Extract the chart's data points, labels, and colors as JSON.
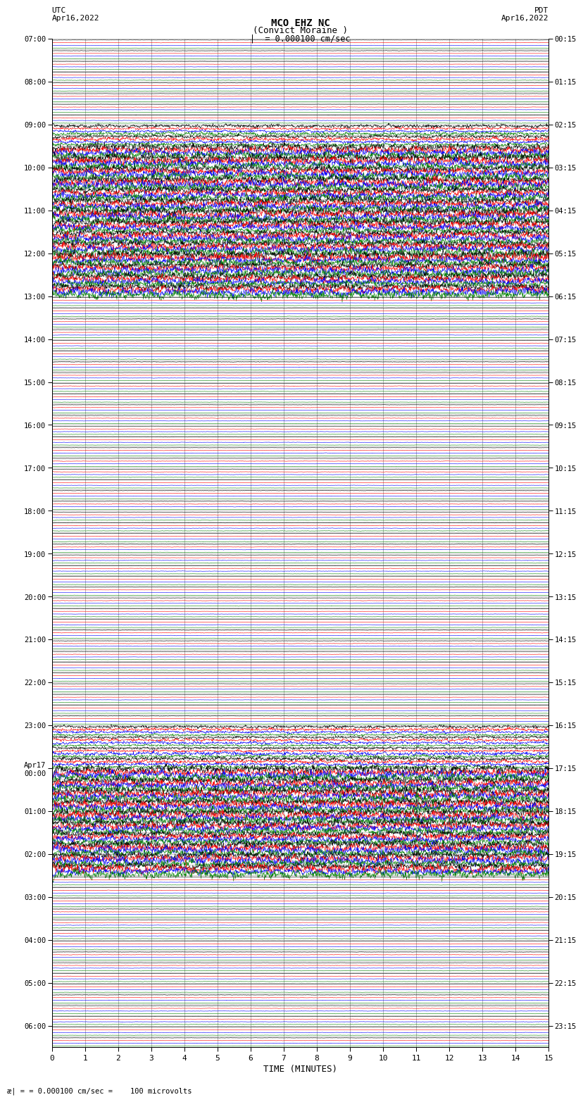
{
  "title_line1": "MCO EHZ NC",
  "title_line2": "(Convict Moraine )",
  "scale_label": "= 0.000100 cm/sec",
  "footer_label": "= 0.000100 cm/sec =    100 microvolts",
  "utc_label": "UTC\nApr16,2022",
  "pdt_label": "PDT\nApr16,2022",
  "xlabel": "TIME (MINUTES)",
  "left_times_utc": [
    "07:00",
    "",
    "",
    "",
    "08:00",
    "",
    "",
    "",
    "09:00",
    "",
    "",
    "",
    "10:00",
    "",
    "",
    "",
    "11:00",
    "",
    "",
    "",
    "12:00",
    "",
    "",
    "",
    "13:00",
    "",
    "",
    "",
    "14:00",
    "",
    "",
    "",
    "15:00",
    "",
    "",
    "",
    "16:00",
    "",
    "",
    "",
    "17:00",
    "",
    "",
    "",
    "18:00",
    "",
    "",
    "",
    "19:00",
    "",
    "",
    "",
    "20:00",
    "",
    "",
    "",
    "21:00",
    "",
    "",
    "",
    "22:00",
    "",
    "",
    "",
    "23:00",
    "",
    "",
    "",
    "Apr17\n00:00",
    "",
    "",
    "",
    "01:00",
    "",
    "",
    "",
    "02:00",
    "",
    "",
    "",
    "03:00",
    "",
    "",
    "",
    "04:00",
    "",
    "",
    "",
    "05:00",
    "",
    "",
    "",
    "06:00",
    ""
  ],
  "right_times_pdt": [
    "00:15",
    "",
    "",
    "",
    "01:15",
    "",
    "",
    "",
    "02:15",
    "",
    "",
    "",
    "03:15",
    "",
    "",
    "",
    "04:15",
    "",
    "",
    "",
    "05:15",
    "",
    "",
    "",
    "06:15",
    "",
    "",
    "",
    "07:15",
    "",
    "",
    "",
    "08:15",
    "",
    "",
    "",
    "09:15",
    "",
    "",
    "",
    "10:15",
    "",
    "",
    "",
    "11:15",
    "",
    "",
    "",
    "12:15",
    "",
    "",
    "",
    "13:15",
    "",
    "",
    "",
    "14:15",
    "",
    "",
    "",
    "15:15",
    "",
    "",
    "",
    "16:15",
    "",
    "",
    "",
    "17:15",
    "",
    "",
    "",
    "18:15",
    "",
    "",
    "",
    "19:15",
    "",
    "",
    "",
    "20:15",
    "",
    "",
    "",
    "21:15",
    "",
    "",
    "",
    "22:15",
    "",
    "",
    "",
    "23:15",
    ""
  ],
  "n_rows": 94,
  "n_cols": 4,
  "colors": [
    "black",
    "red",
    "blue",
    "green"
  ],
  "bg_color": "#ffffff",
  "grid_color": "#999999",
  "seed": 42,
  "active_rows": [
    8,
    9,
    10,
    11,
    12,
    13,
    14,
    15,
    16,
    17,
    18,
    19,
    20,
    21,
    22,
    23,
    64,
    65,
    66,
    67,
    68,
    69,
    70,
    71,
    72,
    73,
    74,
    75,
    76,
    77
  ],
  "high_amp_rows": [
    10,
    11,
    12,
    13,
    14,
    15,
    16,
    17,
    18,
    19,
    20,
    21,
    22,
    23,
    68,
    69,
    70,
    71,
    72,
    73,
    74,
    75,
    76,
    77
  ],
  "medium_rows": [
    8,
    9,
    64,
    65,
    66,
    67
  ]
}
